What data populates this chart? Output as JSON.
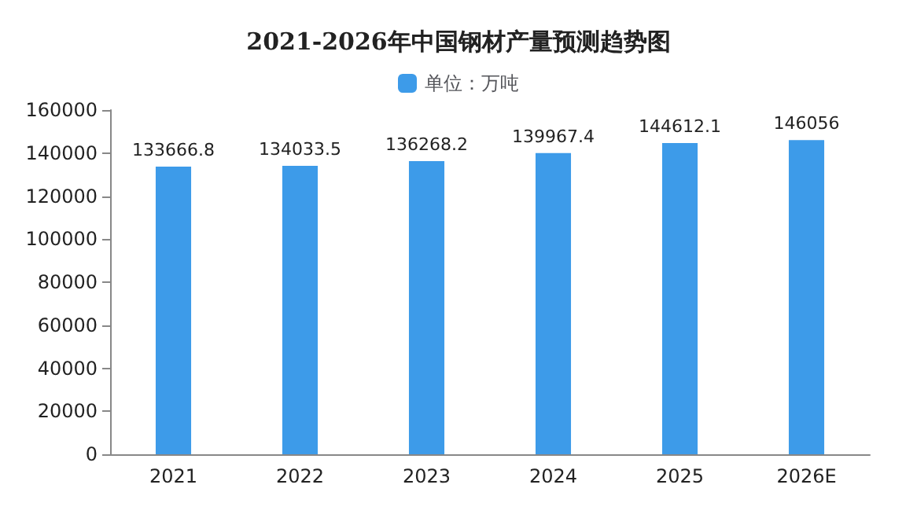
{
  "chart_data": {
    "type": "bar",
    "title": "2021-2026年中国钢材产量预测趋势图",
    "categories": [
      "2021",
      "2022",
      "2023",
      "2024",
      "2025",
      "2026E"
    ],
    "series": [
      {
        "name": "单位：万吨",
        "color": "#3d9be9",
        "values": [
          133666.8,
          134033.5,
          136268.2,
          139967.4,
          144612.1,
          146056
        ]
      }
    ],
    "ylim": [
      0,
      160000
    ],
    "yticks": [
      0,
      20000,
      40000,
      60000,
      80000,
      100000,
      120000,
      140000,
      160000
    ],
    "grid": false,
    "legend": "top",
    "data_labels": true
  }
}
